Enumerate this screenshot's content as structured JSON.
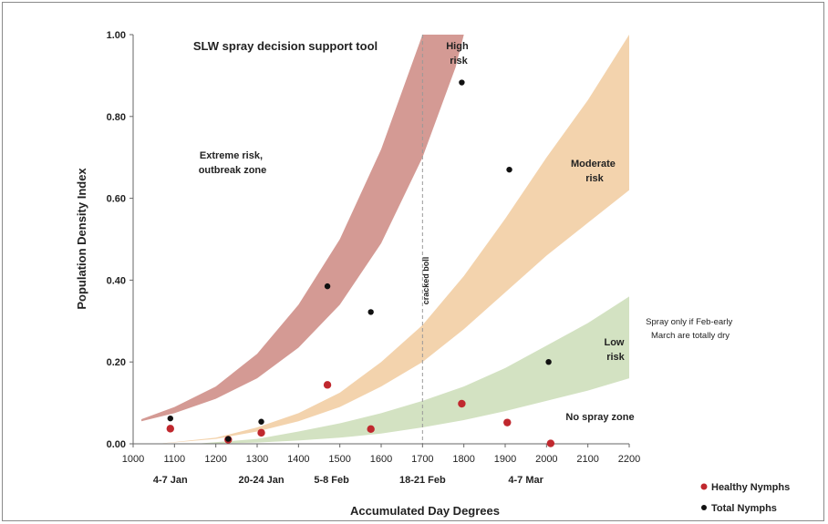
{
  "chart_data": {
    "type": "scatter",
    "title": "SLW spray decision support tool",
    "xlabel": "Accumulated Day Degrees",
    "ylabel": "Population Density Index",
    "xlim": [
      1000,
      2200
    ],
    "ylim": [
      0,
      1
    ],
    "x_ticks": [
      "1000",
      "1100",
      "1200",
      "1300",
      "1400",
      "1500",
      "1600",
      "1700",
      "1800",
      "1900",
      "2000",
      "2100",
      "2200"
    ],
    "y_ticks": [
      "0.00",
      "0.20",
      "0.40",
      "0.60",
      "0.80",
      "1.00"
    ],
    "grid": false,
    "legend_position": "bottom-right",
    "date_labels": [
      {
        "x": 1090,
        "label": "4-7 Jan"
      },
      {
        "x": 1310,
        "label": "20-24 Jan"
      },
      {
        "x": 1480,
        "label": "5-8 Feb"
      },
      {
        "x": 1700,
        "label": "18-21 Feb"
      },
      {
        "x": 1950,
        "label": "4-7 Mar"
      }
    ],
    "reference_line": {
      "x": 1700,
      "label": "cracked boll"
    },
    "zones": [
      {
        "name": "Extreme risk, outbreak zone",
        "label_lines": [
          "Extreme risk,",
          "outbreak zone"
        ],
        "color": "#d49a94",
        "lower": [
          [
            1020,
            0.055
          ],
          [
            1100,
            0.075
          ],
          [
            1200,
            0.11
          ],
          [
            1300,
            0.16
          ],
          [
            1400,
            0.235
          ],
          [
            1500,
            0.34
          ],
          [
            1600,
            0.49
          ],
          [
            1700,
            0.7
          ],
          [
            1780,
            0.92
          ],
          [
            1800,
            1.0
          ]
        ],
        "upper": [
          [
            1020,
            0.06
          ],
          [
            1100,
            0.09
          ],
          [
            1200,
            0.14
          ],
          [
            1300,
            0.22
          ],
          [
            1400,
            0.34
          ],
          [
            1500,
            0.5
          ],
          [
            1600,
            0.72
          ],
          [
            1700,
            1.0
          ]
        ]
      },
      {
        "name": "High risk",
        "label_lines": [
          "High",
          "risk"
        ],
        "color": "#ffffff",
        "lower": [],
        "upper": []
      },
      {
        "name": "Moderate risk",
        "label_lines": [
          "Moderate",
          "risk"
        ],
        "color": "#f3d3ad",
        "lower": [
          [
            1060,
            0.0
          ],
          [
            1200,
            0.012
          ],
          [
            1300,
            0.03
          ],
          [
            1400,
            0.055
          ],
          [
            1500,
            0.09
          ],
          [
            1600,
            0.14
          ],
          [
            1700,
            0.2
          ],
          [
            1800,
            0.28
          ],
          [
            1900,
            0.37
          ],
          [
            2000,
            0.46
          ],
          [
            2100,
            0.54
          ],
          [
            2200,
            0.62
          ]
        ],
        "upper": [
          [
            1060,
            0.0
          ],
          [
            1200,
            0.015
          ],
          [
            1300,
            0.04
          ],
          [
            1400,
            0.075
          ],
          [
            1500,
            0.125
          ],
          [
            1600,
            0.2
          ],
          [
            1700,
            0.29
          ],
          [
            1800,
            0.41
          ],
          [
            1900,
            0.55
          ],
          [
            2000,
            0.7
          ],
          [
            2100,
            0.84
          ],
          [
            2200,
            1.0
          ]
        ]
      },
      {
        "name": "Low risk",
        "label_lines": [
          "Low",
          "risk"
        ],
        "color": "#d3e2c2",
        "lower": [
          [
            1150,
            0.0
          ],
          [
            1300,
            0.003
          ],
          [
            1400,
            0.008
          ],
          [
            1500,
            0.015
          ],
          [
            1600,
            0.025
          ],
          [
            1700,
            0.04
          ],
          [
            1800,
            0.058
          ],
          [
            1900,
            0.08
          ],
          [
            2000,
            0.105
          ],
          [
            2100,
            0.13
          ],
          [
            2200,
            0.16
          ]
        ],
        "upper": [
          [
            1150,
            0.0
          ],
          [
            1300,
            0.012
          ],
          [
            1400,
            0.03
          ],
          [
            1500,
            0.05
          ],
          [
            1600,
            0.075
          ],
          [
            1700,
            0.105
          ],
          [
            1800,
            0.14
          ],
          [
            1900,
            0.185
          ],
          [
            2000,
            0.24
          ],
          [
            2100,
            0.295
          ],
          [
            2200,
            0.36
          ]
        ]
      },
      {
        "name": "No spray zone",
        "label_lines": [
          "No spray zone"
        ],
        "color": "#ffffff",
        "lower": [],
        "upper": []
      }
    ],
    "note": [
      "Spray only if Feb-early",
      "March are totally dry"
    ],
    "series": [
      {
        "name": "Healthy Nymphs",
        "color": "#c0282e",
        "x": [
          1090,
          1230,
          1310,
          1470,
          1575,
          1795,
          1905,
          2010
        ],
        "y": [
          0.037,
          0.01,
          0.027,
          0.144,
          0.036,
          0.098,
          0.052,
          0.001
        ]
      },
      {
        "name": "Total Nymphs",
        "color": "#111111",
        "x": [
          1090,
          1230,
          1310,
          1470,
          1575,
          1795,
          1910,
          2005
        ],
        "y": [
          0.062,
          0.012,
          0.054,
          0.385,
          0.322,
          0.883,
          0.67,
          0.2
        ]
      }
    ]
  }
}
